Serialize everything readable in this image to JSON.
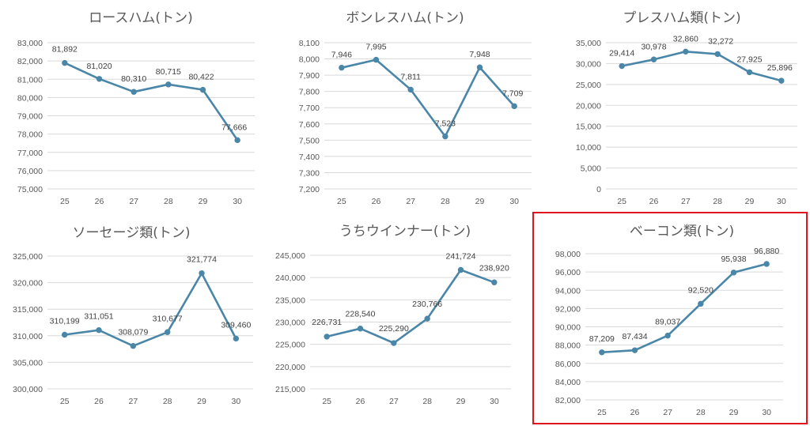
{
  "colors": {
    "series": "#4a86a8",
    "highlight": "#e0141e",
    "grid": "#d9d9d9",
    "text": "#595959"
  },
  "chart_data": [
    {
      "type": "line",
      "title": "ロースハム(トン)",
      "categories": [
        "25",
        "26",
        "27",
        "28",
        "29",
        "30"
      ],
      "values": [
        81892,
        81020,
        80310,
        80715,
        80422,
        77666
      ],
      "data_labels": [
        "81,892",
        "81,020",
        "80,310",
        "80,715",
        "80,422",
        "77,666"
      ],
      "yticks": [
        "75,000",
        "76,000",
        "77,000",
        "78,000",
        "79,000",
        "80,000",
        "81,000",
        "82,000",
        "83,000"
      ],
      "ylim": [
        75000,
        83000
      ],
      "grid": true,
      "highlighted": false
    },
    {
      "type": "line",
      "title": "ボンレスハム(トン)",
      "categories": [
        "25",
        "26",
        "27",
        "28",
        "29",
        "30"
      ],
      "values": [
        7946,
        7995,
        7811,
        7523,
        7948,
        7709
      ],
      "data_labels": [
        "7,946",
        "7,995",
        "7,811",
        "7,523",
        "7,948",
        "7,709"
      ],
      "yticks": [
        "7,200",
        "7,300",
        "7,400",
        "7,500",
        "7,600",
        "7,700",
        "7,800",
        "7,900",
        "8,000",
        "8,100"
      ],
      "ylim": [
        7200,
        8100
      ],
      "grid": true,
      "highlighted": false
    },
    {
      "type": "line",
      "title": "プレスハム類(トン)",
      "categories": [
        "25",
        "26",
        "27",
        "28",
        "29",
        "30"
      ],
      "values": [
        29414,
        30978,
        32860,
        32272,
        27925,
        25896
      ],
      "data_labels": [
        "29,414",
        "30,978",
        "32,860",
        "32,272",
        "27,925",
        "25,896"
      ],
      "yticks": [
        "0",
        "5,000",
        "10,000",
        "15,000",
        "20,000",
        "25,000",
        "30,000",
        "35,000"
      ],
      "ylim": [
        0,
        35000
      ],
      "grid": true,
      "highlighted": false
    },
    {
      "type": "line",
      "title": "ソーセージ類(トン)",
      "categories": [
        "25",
        "26",
        "27",
        "28",
        "29",
        "30"
      ],
      "values": [
        310199,
        311051,
        308079,
        310677,
        321774,
        309460
      ],
      "data_labels": [
        "310,199",
        "311,051",
        "308,079",
        "310,677",
        "321,774",
        "309,460"
      ],
      "yticks": [
        "300,000",
        "305,000",
        "310,000",
        "315,000",
        "320,000",
        "325,000"
      ],
      "ylim": [
        300000,
        325000
      ],
      "grid": true,
      "highlighted": false
    },
    {
      "type": "line",
      "title": "うちウインナー(トン)",
      "categories": [
        "25",
        "26",
        "27",
        "28",
        "29",
        "30"
      ],
      "values": [
        226731,
        228540,
        225290,
        230766,
        241724,
        238920
      ],
      "data_labels": [
        "226,731",
        "228,540",
        "225,290",
        "230,766",
        "241,724",
        "238,920"
      ],
      "yticks": [
        "215,000",
        "220,000",
        "225,000",
        "230,000",
        "235,000",
        "240,000",
        "245,000"
      ],
      "ylim": [
        215000,
        245000
      ],
      "grid": true,
      "highlighted": false
    },
    {
      "type": "line",
      "title": "ベーコン類(トン)",
      "categories": [
        "25",
        "26",
        "27",
        "28",
        "29",
        "30"
      ],
      "values": [
        87209,
        87434,
        89037,
        92520,
        95938,
        96880
      ],
      "data_labels": [
        "87,209",
        "87,434",
        "89,037",
        "92,520",
        "95,938",
        "96,880"
      ],
      "yticks": [
        "82,000",
        "84,000",
        "86,000",
        "88,000",
        "90,000",
        "92,000",
        "94,000",
        "96,000",
        "98,000"
      ],
      "ylim": [
        82000,
        98000
      ],
      "grid": true,
      "highlighted": true
    }
  ]
}
